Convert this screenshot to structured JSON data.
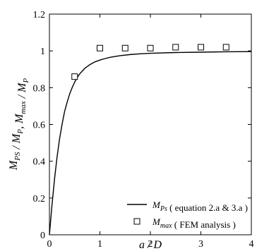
{
  "chart_data": {
    "type": "line",
    "xlabel": "a / D",
    "ylabel": "M_PS / M_P,  M_max / M_P",
    "xlim": [
      0,
      4
    ],
    "ylim": [
      0,
      1.2
    ],
    "x_ticks": [
      "0",
      "1",
      "2",
      "3",
      "4"
    ],
    "y_ticks": [
      "0",
      "0.2",
      "0.4",
      "0.6",
      "0.8",
      "1",
      "1.2"
    ],
    "grid": false,
    "legend_position": "bottom-right",
    "series": [
      {
        "name": "M_Ps ( equation 2.a & 3.a )",
        "style": "line",
        "x": [
          0,
          0.05,
          0.1,
          0.15,
          0.2,
          0.25,
          0.3,
          0.35,
          0.4,
          0.45,
          0.5,
          0.55,
          0.6,
          0.65,
          0.7,
          0.75,
          0.8,
          0.9,
          1.0,
          1.1,
          1.2,
          1.4,
          1.6,
          1.8,
          2.0,
          2.5,
          3.0,
          3.5,
          4.0
        ],
        "y": [
          0,
          0.16,
          0.3,
          0.42,
          0.52,
          0.6,
          0.67,
          0.72,
          0.765,
          0.8,
          0.83,
          0.855,
          0.875,
          0.89,
          0.905,
          0.915,
          0.925,
          0.94,
          0.95,
          0.958,
          0.965,
          0.974,
          0.98,
          0.984,
          0.987,
          0.991,
          0.993,
          0.995,
          0.996
        ]
      },
      {
        "name": "M_max ( FEM analysis )",
        "style": "markers",
        "marker": "open-square",
        "x": [
          0.5,
          1.0,
          1.5,
          2.0,
          2.5,
          3.0,
          3.5
        ],
        "y": [
          0.86,
          1.015,
          1.015,
          1.015,
          1.02,
          1.02,
          1.02
        ]
      }
    ],
    "legend": [
      {
        "main": "M",
        "sub": "Ps",
        "rest": " ( equation 2.a & 3.a )"
      },
      {
        "main": "M",
        "sub": "max",
        "rest": " ( FEM analysis )"
      }
    ],
    "ylabel_parts": [
      {
        "main": "M",
        "sub": "PS"
      },
      {
        "main": " / M",
        "sub": "P"
      },
      {
        "main": ",  M",
        "sub": "max"
      },
      {
        "main": " / M",
        "sub": "P"
      }
    ]
  }
}
